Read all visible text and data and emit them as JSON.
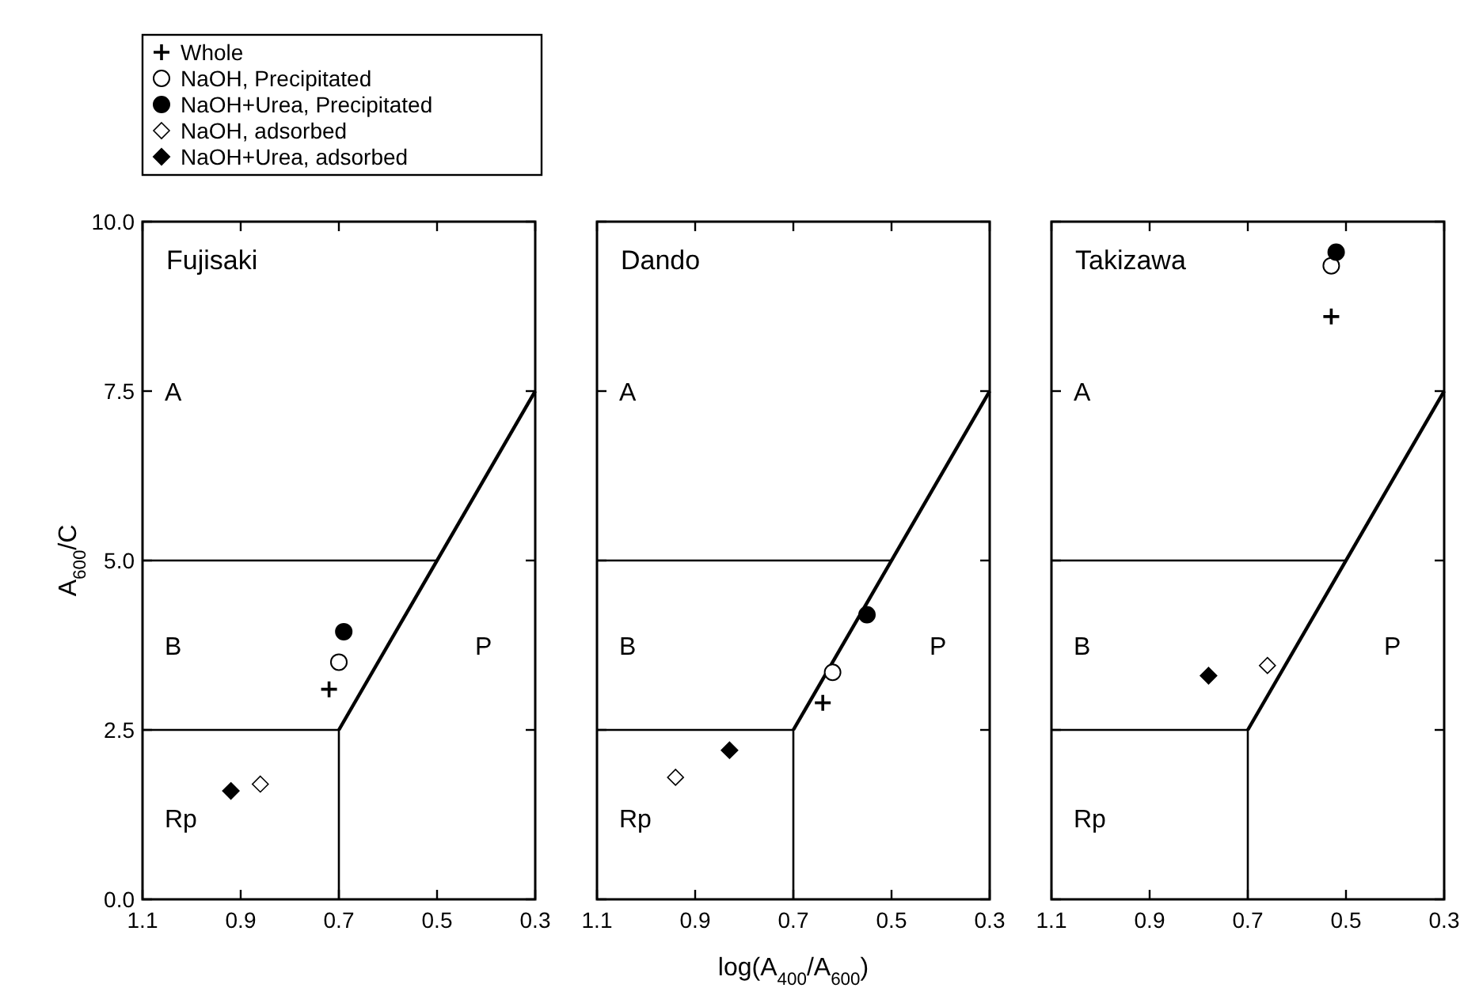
{
  "chart_data": [
    {
      "type": "scatter",
      "title": "Fujisaki",
      "ylabel": "A$_{600}$/C",
      "xlim": [
        1.1,
        0.3
      ],
      "ylim": [
        0,
        10
      ],
      "xticks": [
        1.1,
        0.9,
        0.7,
        0.5,
        0.3
      ],
      "yticks": [
        {
          "value": 0,
          "label": "0.0"
        },
        {
          "value": 2.5,
          "label": "2.5"
        },
        {
          "value": 5,
          "label": "5.0"
        },
        {
          "value": 7.5,
          "label": "7.5"
        },
        {
          "value": 10,
          "label": "10.0"
        }
      ],
      "legend": "top",
      "grid": false,
      "annotations": [
        "A",
        "B",
        "P",
        "Rp"
      ],
      "series": [
        {
          "type": "line",
          "color": "#000000",
          "x": [
            1.1,
            0.5
          ],
          "values": [
            5,
            5
          ]
        },
        {
          "type": "line",
          "color": "#000000",
          "x": [
            1.1,
            0.7
          ],
          "values": [
            2.5,
            2.5
          ]
        },
        {
          "type": "line",
          "color": "#000000",
          "x": [
            0.7,
            0.7
          ],
          "values": [
            0,
            2.5
          ]
        },
        {
          "type": "line",
          "color": "#000000",
          "x": [
            0.7,
            0.3
          ],
          "values": [
            2.5,
            7.5
          ]
        },
        {
          "name": "Whole",
          "color": "#000000",
          "marker": "cross",
          "x": [
            0.72
          ],
          "values": [
            3.1
          ]
        },
        {
          "name": "NaOH, Precipitated",
          "color": "#ffffff",
          "marker": "circle",
          "x": [
            0.7
          ],
          "values": [
            3.5
          ]
        },
        {
          "name": "NaOH+Urea, Precipitated",
          "color": "#000000",
          "marker": "circle",
          "x": [
            0.69
          ],
          "values": [
            3.95
          ]
        },
        {
          "name": "NaOH, adsorbed",
          "color": "#ffffff",
          "marker": "diamond",
          "x": [
            0.86
          ],
          "values": [
            1.7
          ]
        },
        {
          "name": "NaOH+Urea, adsorbed",
          "color": "#000000",
          "marker": "diamond",
          "x": [
            0.92
          ],
          "values": [
            1.6
          ]
        }
      ]
    },
    {
      "type": "scatter",
      "title": "Dando",
      "xlabel": "log(A$_{400}$/A$_{600}$)",
      "xlim": [
        1.1,
        0.3
      ],
      "ylim": [
        0,
        10
      ],
      "xticks": [
        1.1,
        0.9,
        0.7,
        0.5,
        0.3
      ],
      "yticks": [
        {
          "value": 0,
          "label": null
        },
        {
          "value": 2.5,
          "label": null
        },
        {
          "value": 5,
          "label": null
        },
        {
          "value": 7.5,
          "label": null
        },
        {
          "value": 10,
          "label": null
        }
      ],
      "tick_labels": "x",
      "grid": false,
      "annotations": [
        "A",
        "B",
        "P",
        "Rp"
      ],
      "series": [
        {
          "type": "line",
          "color": "#000000",
          "x": [
            1.1,
            0.5
          ],
          "values": [
            5,
            5
          ]
        },
        {
          "type": "line",
          "color": "#000000",
          "x": [
            1.1,
            0.7
          ],
          "values": [
            2.5,
            2.5
          ]
        },
        {
          "type": "line",
          "color": "#000000",
          "x": [
            0.7,
            0.7
          ],
          "values": [
            0,
            2.5
          ]
        },
        {
          "type": "line",
          "color": "#000000",
          "x": [
            0.7,
            0.3
          ],
          "values": [
            2.5,
            7.5
          ]
        },
        {
          "color": "#000000",
          "marker": "cross",
          "x": [
            0.64
          ],
          "values": [
            2.9
          ]
        },
        {
          "color": "#ffffff",
          "marker": "circle",
          "x": [
            0.62
          ],
          "values": [
            3.35
          ]
        },
        {
          "color": "#000000",
          "marker": "circle",
          "x": [
            0.55
          ],
          "values": [
            4.2
          ]
        },
        {
          "color": "#ffffff",
          "marker": "diamond",
          "x": [
            0.94
          ],
          "values": [
            1.8
          ]
        },
        {
          "color": "#000000",
          "marker": "diamond",
          "x": [
            0.83
          ],
          "values": [
            2.2
          ]
        }
      ]
    },
    {
      "type": "scatter",
      "title": "Takizawa",
      "xlim": [
        1.1,
        0.3
      ],
      "ylim": [
        0,
        10
      ],
      "xticks": [
        1.1,
        0.9,
        0.7,
        0.5,
        0.3
      ],
      "yticks": [
        {
          "value": 0,
          "label": null
        },
        {
          "value": 2.5,
          "label": null
        },
        {
          "value": 5,
          "label": null
        },
        {
          "value": 7.5,
          "label": null
        },
        {
          "value": 10,
          "label": null
        }
      ],
      "tick_labels": "x",
      "grid": false,
      "annotations": [
        "A",
        "B",
        "P",
        "Rp"
      ],
      "series": [
        {
          "type": "line",
          "color": "#000000",
          "x": [
            1.1,
            0.5
          ],
          "values": [
            5,
            5
          ]
        },
        {
          "type": "line",
          "color": "#000000",
          "x": [
            1.1,
            0.7
          ],
          "values": [
            2.5,
            2.5
          ]
        },
        {
          "type": "line",
          "color": "#000000",
          "x": [
            0.7,
            0.7
          ],
          "values": [
            0,
            2.5
          ]
        },
        {
          "type": "line",
          "color": "#000000",
          "x": [
            0.7,
            0.3
          ],
          "values": [
            2.5,
            7.5
          ]
        },
        {
          "color": "#000000",
          "marker": "cross",
          "x": [
            0.53
          ],
          "values": [
            8.6
          ]
        },
        {
          "color": "#ffffff",
          "marker": "circle",
          "x": [
            0.53
          ],
          "values": [
            9.35
          ]
        },
        {
          "color": "#000000",
          "marker": "circle",
          "x": [
            0.52
          ],
          "values": [
            9.55
          ]
        },
        {
          "color": "#ffffff",
          "marker": "diamond",
          "x": [
            0.66
          ],
          "values": [
            3.45
          ]
        },
        {
          "color": "#000000",
          "marker": "diamond",
          "x": [
            0.78
          ],
          "values": [
            3.3
          ]
        }
      ]
    }
  ]
}
